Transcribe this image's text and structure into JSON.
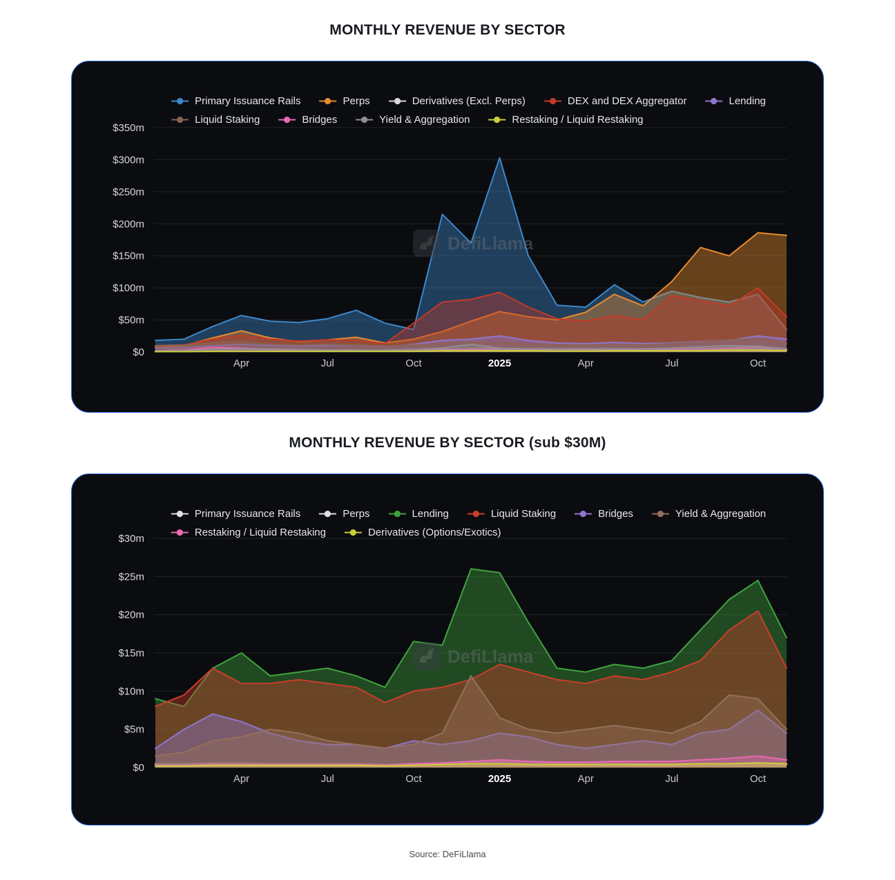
{
  "page": {
    "source_note": "Source: DeFiLlama",
    "watermark_text": "DefiLlama",
    "background": "#ffffff",
    "card_bg": "#0b0c10",
    "card_border_color": "#2c6be0"
  },
  "charts": [
    {
      "title": "MONTHLY REVENUE BY SECTOR",
      "chart_data": {
        "type": "area",
        "unit": "$m",
        "ylim": [
          0,
          350
        ],
        "y_ticks": [
          0,
          50,
          100,
          150,
          200,
          250,
          300,
          350
        ],
        "fill_opacity": 0.42,
        "grid": true,
        "legend_position": "top",
        "x": [
          "Jan 2024",
          "Feb 2024",
          "Mar 2024",
          "Apr 2024",
          "May 2024",
          "Jun 2024",
          "Jul 2024",
          "Aug 2024",
          "Sep 2024",
          "Oct 2024",
          "Nov 2024",
          "Dec 2024",
          "Jan 2025",
          "Feb 2025",
          "Mar 2025",
          "Apr 2025",
          "May 2025",
          "Jun 2025",
          "Jul 2025",
          "Aug 2025",
          "Sep 2025",
          "Oct 2025",
          "Nov 2025"
        ],
        "x_ticks": [
          {
            "index": 3,
            "label": "Apr",
            "bold": false
          },
          {
            "index": 6,
            "label": "Jul",
            "bold": false
          },
          {
            "index": 9,
            "label": "Oct",
            "bold": false
          },
          {
            "index": 12,
            "label": "2025",
            "bold": true
          },
          {
            "index": 15,
            "label": "Apr",
            "bold": false
          },
          {
            "index": 18,
            "label": "Jul",
            "bold": false
          },
          {
            "index": 21,
            "label": "Oct",
            "bold": false
          }
        ],
        "legend_rows": [
          [
            0,
            1,
            2,
            3,
            4
          ],
          [
            5,
            6,
            7,
            8
          ]
        ],
        "series": [
          {
            "name": "Primary Issuance Rails",
            "color": "#3e87c8",
            "values": [
              18,
              20,
              40,
              57,
              48,
              46,
              52,
              65,
              45,
              35,
              215,
              170,
              303,
              150,
              73,
              70,
              105,
              78,
              95,
              85,
              78,
              90,
              35
            ]
          },
          {
            "name": "Perps",
            "color": "#e78a2e",
            "values": [
              8,
              10,
              22,
              33,
              22,
              16,
              19,
              23,
              14,
              20,
              32,
              48,
              63,
              55,
              50,
              62,
              90,
              72,
              110,
              163,
              150,
              186,
              182
            ]
          },
          {
            "name": "Derivatives (Excl. Perps)",
            "color": "#d9d9d9",
            "values": [
              2,
              2,
              3,
              4,
              3,
              3,
              3,
              3,
              2,
              3,
              4,
              5,
              6,
              4,
              3,
              3,
              4,
              3,
              4,
              4,
              5,
              6,
              4
            ]
          },
          {
            "name": "DEX and DEX Aggregator",
            "color": "#c23a28",
            "values": [
              9,
              11,
              20,
              26,
              20,
              17,
              19,
              18,
              13,
              45,
              78,
              82,
              93,
              70,
              52,
              48,
              57,
              50,
              88,
              80,
              72,
              100,
              55
            ]
          },
          {
            "name": "Lending",
            "color": "#8f76cf",
            "values": [
              6,
              7,
              10,
              12,
              10,
              9,
              10,
              11,
              8,
              12,
              18,
              20,
              25,
              18,
              14,
              13,
              15,
              13,
              14,
              16,
              18,
              25,
              20
            ]
          },
          {
            "name": "Liquid Staking",
            "color": "#8a6353",
            "values": [
              10,
              11,
              14,
              16,
              12,
              11,
              12,
              11,
              9,
              11,
              13,
              14,
              14,
              12,
              11,
              11,
              12,
              11,
              13,
              15,
              19,
              21,
              13
            ]
          },
          {
            "name": "Bridges",
            "color": "#e86ab2",
            "values": [
              2,
              3,
              7,
              6,
              4,
              3,
              3,
              3,
              2,
              3,
              4,
              4,
              5,
              4,
              3,
              3,
              3,
              3,
              4,
              5,
              6,
              8,
              4
            ]
          },
          {
            "name": "Yield & Aggregation",
            "color": "#8f8f8f",
            "values": [
              2,
              2,
              4,
              5,
              5,
              4,
              3,
              3,
              3,
              4,
              6,
              12,
              6,
              5,
              5,
              5,
              5,
              5,
              6,
              8,
              10,
              9,
              5
            ]
          },
          {
            "name": "Restaking / Liquid Restaking",
            "color": "#c9cf3a",
            "values": [
              0.5,
              0.5,
              1,
              1,
              1,
              1,
              1,
              1,
              1,
              1,
              2,
              2,
              2,
              2,
              1.5,
              1.5,
              2,
              2,
              2,
              2,
              3,
              3,
              2
            ]
          }
        ]
      }
    },
    {
      "title": "MONTHLY REVENUE BY SECTOR (sub $30M)",
      "chart_data": {
        "type": "area",
        "unit": "$m",
        "ylim": [
          0,
          30
        ],
        "y_ticks": [
          0,
          5,
          10,
          15,
          20,
          25,
          30
        ],
        "fill_opacity": 0.42,
        "grid": true,
        "legend_position": "top",
        "x": [
          "Jan 2024",
          "Feb 2024",
          "Mar 2024",
          "Apr 2024",
          "May 2024",
          "Jun 2024",
          "Jul 2024",
          "Aug 2024",
          "Sep 2024",
          "Oct 2024",
          "Nov 2024",
          "Dec 2024",
          "Jan 2025",
          "Feb 2025",
          "Mar 2025",
          "Apr 2025",
          "May 2025",
          "Jun 2025",
          "Jul 2025",
          "Aug 2025",
          "Sep 2025",
          "Oct 2025",
          "Nov 2025"
        ],
        "x_ticks": [
          {
            "index": 3,
            "label": "Apr",
            "bold": false
          },
          {
            "index": 6,
            "label": "Jul",
            "bold": false
          },
          {
            "index": 9,
            "label": "Oct",
            "bold": false
          },
          {
            "index": 12,
            "label": "2025",
            "bold": true
          },
          {
            "index": 15,
            "label": "Apr",
            "bold": false
          },
          {
            "index": 18,
            "label": "Jul",
            "bold": false
          },
          {
            "index": 21,
            "label": "Oct",
            "bold": false
          }
        ],
        "legend_rows": [
          [
            0,
            1,
            2,
            3,
            4,
            5
          ],
          [
            6,
            7
          ]
        ],
        "series": [
          {
            "name": "Primary Issuance Rails",
            "color": "#e0e0e0",
            "values": [
              0.5,
              0.5,
              0.6,
              0.6,
              0.5,
              0.5,
              0.5,
              0.5,
              0.4,
              0.5,
              0.6,
              0.7,
              0.8,
              0.6,
              0.5,
              0.5,
              0.6,
              0.5,
              0.5,
              0.5,
              0.5,
              0.6,
              0.4
            ]
          },
          {
            "name": "Perps",
            "color": "#e0e0e0",
            "values": [
              0.4,
              0.4,
              0.5,
              0.5,
              0.4,
              0.4,
              0.4,
              0.4,
              0.3,
              0.4,
              0.5,
              0.5,
              0.6,
              0.5,
              0.4,
              0.5,
              0.5,
              0.4,
              0.5,
              0.5,
              0.5,
              0.6,
              0.5
            ]
          },
          {
            "name": "Lending",
            "color": "#41a33e",
            "values": [
              9,
              8,
              13,
              15,
              12,
              12.5,
              13,
              12,
              10.5,
              16.5,
              16,
              26,
              25.5,
              19,
              13,
              12.5,
              13.5,
              13,
              14,
              18,
              22,
              24.5,
              17
            ]
          },
          {
            "name": "Liquid Staking",
            "color": "#cc3e2b",
            "values": [
              8,
              9.5,
              13,
              11,
              11,
              11.5,
              11,
              10.5,
              8.5,
              10,
              10.5,
              11.5,
              13.5,
              12.5,
              11.5,
              11,
              12,
              11.5,
              12.5,
              14,
              18,
              20.5,
              13
            ]
          },
          {
            "name": "Bridges",
            "color": "#8f76cf",
            "values": [
              2.5,
              5,
              7,
              6,
              4.5,
              3.5,
              3,
              3,
              2.5,
              3.5,
              3,
              3.5,
              4.5,
              4,
              3,
              2.5,
              3,
              3.5,
              3,
              4.5,
              5,
              7.5,
              4.5
            ]
          },
          {
            "name": "Yield & Aggregation",
            "color": "#96705a",
            "values": [
              1.5,
              2,
              3.5,
              4,
              5,
              4.5,
              3.5,
              3,
              2.5,
              3,
              4.5,
              12,
              6.5,
              5,
              4.5,
              5,
              5.5,
              5,
              4.5,
              6,
              9.5,
              9,
              5
            ]
          },
          {
            "name": "Restaking / Liquid Restaking",
            "color": "#e86ab2",
            "values": [
              0.3,
              0.3,
              0.4,
              0.4,
              0.4,
              0.4,
              0.4,
              0.4,
              0.3,
              0.5,
              0.6,
              0.8,
              1,
              0.8,
              0.7,
              0.7,
              0.8,
              0.8,
              0.8,
              1,
              1.2,
              1.5,
              1
            ]
          },
          {
            "name": "Derivatives (Options/Exotics)",
            "color": "#c9cf3a",
            "values": [
              0.2,
              0.2,
              0.3,
              0.3,
              0.3,
              0.3,
              0.3,
              0.3,
              0.2,
              0.3,
              0.4,
              0.5,
              0.5,
              0.4,
              0.4,
              0.4,
              0.4,
              0.4,
              0.4,
              0.5,
              0.5,
              0.6,
              0.5
            ]
          }
        ]
      }
    }
  ]
}
